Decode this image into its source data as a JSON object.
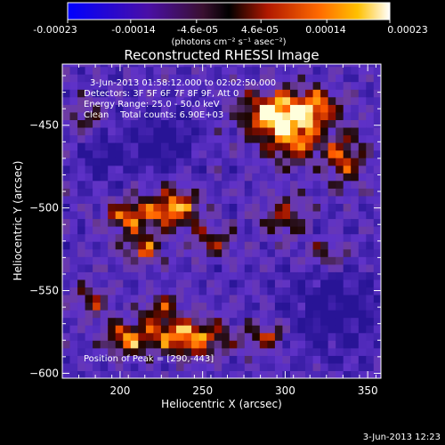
{
  "chart_data": {
    "type": "heatmap",
    "title": "Reconstructed RHESSI Image",
    "xlabel": "Heliocentric X (arcsec)",
    "ylabel": "Heliocentric Y (arcsec)",
    "xlim": [
      165,
      358
    ],
    "ylim": [
      -603,
      -413
    ],
    "x_ticks": [
      200,
      250,
      300,
      350
    ],
    "y_ticks": [
      -450,
      -500,
      -550,
      -600
    ],
    "colorbar": {
      "range": [
        -0.00023,
        0.00023
      ],
      "ticks": [
        -0.00023,
        -0.00014,
        -4.6e-05,
        4.6e-05,
        0.00014,
        0.00023
      ],
      "tick_labels": [
        "-0.00023",
        "-0.00014",
        "-4.6e-05",
        "4.6e-05",
        "0.00014",
        "0.00023"
      ],
      "units": "(photons cm⁻² s⁻¹ asec⁻²)"
    },
    "annotations": [
      "3-Jun-2013 01:58:12.000 to 02:02:50.000",
      "Detectors: 3F 5F 6F 7F 8F 9F, Att 0",
      "Energy Range: 25.0 - 50.0 keV",
      "Clean    Total counts: 6.90E+03"
    ],
    "peak_label": "Position of Peak = [290,-443]",
    "peak": [
      290,
      -443
    ],
    "timestamp": "3-Jun-2013 12:23",
    "bright_regions": [
      {
        "x": 293,
        "y": -443,
        "sx": 20,
        "sy": 14,
        "a": 1.15
      },
      {
        "x": 318,
        "y": -440,
        "sx": 14,
        "sy": 13,
        "a": 0.85
      },
      {
        "x": 305,
        "y": -462,
        "sx": 16,
        "sy": 12,
        "a": 0.75
      },
      {
        "x": 336,
        "y": -470,
        "sx": 12,
        "sy": 16,
        "a": 0.7
      },
      {
        "x": 300,
        "y": -505,
        "sx": 14,
        "sy": 12,
        "a": 0.6
      },
      {
        "x": 326,
        "y": -528,
        "sx": 14,
        "sy": 10,
        "a": 0.5
      },
      {
        "x": 232,
        "y": -500,
        "sx": 16,
        "sy": 12,
        "a": 0.95
      },
      {
        "x": 205,
        "y": -505,
        "sx": 14,
        "sy": 10,
        "a": 0.8
      },
      {
        "x": 214,
        "y": -525,
        "sx": 12,
        "sy": 9,
        "a": 0.7
      },
      {
        "x": 256,
        "y": -520,
        "sx": 12,
        "sy": 10,
        "a": 0.6
      },
      {
        "x": 242,
        "y": -578,
        "sx": 22,
        "sy": 12,
        "a": 0.95
      },
      {
        "x": 205,
        "y": -578,
        "sx": 16,
        "sy": 10,
        "a": 0.8
      },
      {
        "x": 288,
        "y": -578,
        "sx": 12,
        "sy": 8,
        "a": 0.7
      },
      {
        "x": 183,
        "y": -555,
        "sx": 10,
        "sy": 9,
        "a": 0.6
      },
      {
        "x": 225,
        "y": -560,
        "sx": 12,
        "sy": 9,
        "a": 0.6
      },
      {
        "x": 178,
        "y": -445,
        "sx": 10,
        "sy": 10,
        "a": 0.5
      }
    ],
    "dark_regions": [
      {
        "x": 225,
        "y": -460,
        "sx": 20,
        "sy": 18,
        "a": 0.6
      },
      {
        "x": 330,
        "y": -560,
        "sx": 28,
        "sy": 28,
        "a": 0.6
      },
      {
        "x": 190,
        "y": -470,
        "sx": 16,
        "sy": 16,
        "a": 0.45
      }
    ]
  }
}
